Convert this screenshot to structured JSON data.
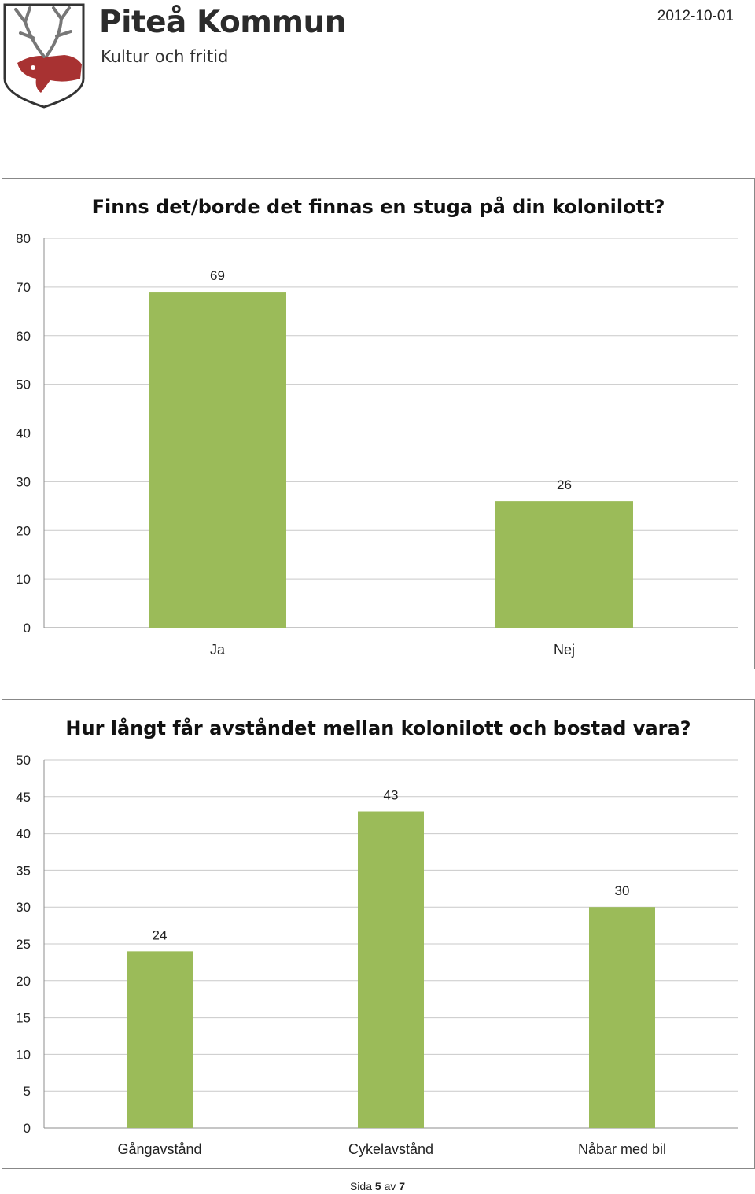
{
  "header": {
    "org_name": "Piteå Kommun",
    "org_dept": "Kultur och fritid",
    "date": "2012-10-01",
    "logo_icon": "reindeer-crest-icon"
  },
  "colors": {
    "bar": "#9bbb59",
    "grid": "#c9c9c9",
    "axis": "#8c8c8c"
  },
  "chart_data": [
    {
      "type": "bar",
      "title": "Finns det/borde det finnas en stuga på din kolonilott?",
      "categories": [
        "Ja",
        "Nej"
      ],
      "values": [
        69,
        26
      ],
      "ylim": [
        0,
        80
      ],
      "yticks": [
        0,
        10,
        20,
        30,
        40,
        50,
        60,
        70,
        80
      ],
      "grid": true,
      "xlabel": "",
      "ylabel": ""
    },
    {
      "type": "bar",
      "title": "Hur långt får avståndet mellan kolonilott och bostad vara?",
      "categories": [
        "Gångavstånd",
        "Cykelavstånd",
        "Nåbar med bil"
      ],
      "values": [
        24,
        43,
        30
      ],
      "ylim": [
        0,
        50
      ],
      "yticks": [
        0,
        5,
        10,
        15,
        20,
        25,
        30,
        35,
        40,
        45,
        50
      ],
      "grid": true,
      "xlabel": "",
      "ylabel": ""
    }
  ],
  "footer": {
    "prefix": "Sida",
    "page": "5",
    "sep": "av",
    "total": "7"
  }
}
